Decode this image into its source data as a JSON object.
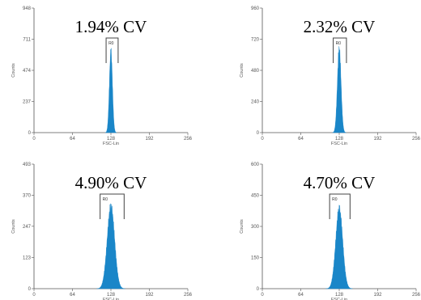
{
  "chart_data": [
    {
      "type": "histogram",
      "title": "1.94% CV",
      "xlabel": "FSC-Lin",
      "ylabel": "Counts",
      "xlim": [
        0,
        256
      ],
      "ylim": [
        0,
        948
      ],
      "x_ticks": [
        0,
        64,
        128,
        192,
        256
      ],
      "y_ticks": [
        0,
        237,
        474,
        711,
        948
      ],
      "gate": {
        "label": "R0",
        "x_range": [
          120,
          140
        ]
      },
      "peak": {
        "center": 128,
        "sd": 2.5,
        "height": 620
      },
      "color": "#1a86c8"
    },
    {
      "type": "histogram",
      "title": "2.32% CV",
      "xlabel": "FSC-Lin",
      "ylabel": "Counts",
      "xlim": [
        0,
        256
      ],
      "ylim": [
        0,
        960
      ],
      "x_ticks": [
        0,
        64,
        128,
        192,
        256
      ],
      "y_ticks": [
        0,
        240,
        480,
        720,
        960
      ],
      "gate": {
        "label": "R0",
        "x_range": [
          118,
          140
        ]
      },
      "peak": {
        "center": 128,
        "sd": 3.0,
        "height": 650
      },
      "color": "#1a86c8"
    },
    {
      "type": "histogram",
      "title": "4.90% CV",
      "xlabel": "FSC-Lin",
      "ylabel": "Counts",
      "xlim": [
        0,
        256
      ],
      "ylim": [
        0,
        493
      ],
      "x_ticks": [
        0,
        64,
        128,
        192,
        256
      ],
      "y_ticks": [
        0,
        123,
        247,
        370,
        493
      ],
      "gate": {
        "label": "R0",
        "x_range": [
          110,
          150
        ]
      },
      "peak": {
        "center": 128,
        "sd": 6.2,
        "height": 325
      },
      "color": "#1a86c8"
    },
    {
      "type": "histogram",
      "title": "4.70% CV",
      "xlabel": "FSC-Lin",
      "ylabel": "Counts",
      "xlim": [
        0,
        256
      ],
      "ylim": [
        0,
        600
      ],
      "x_ticks": [
        0,
        64,
        128,
        192,
        256
      ],
      "y_ticks": [
        0,
        150,
        300,
        450,
        600
      ],
      "gate": {
        "label": "R0",
        "x_range": [
          112,
          146
        ]
      },
      "peak": {
        "center": 128,
        "sd": 5.8,
        "height": 385
      },
      "color": "#1a86c8"
    }
  ]
}
